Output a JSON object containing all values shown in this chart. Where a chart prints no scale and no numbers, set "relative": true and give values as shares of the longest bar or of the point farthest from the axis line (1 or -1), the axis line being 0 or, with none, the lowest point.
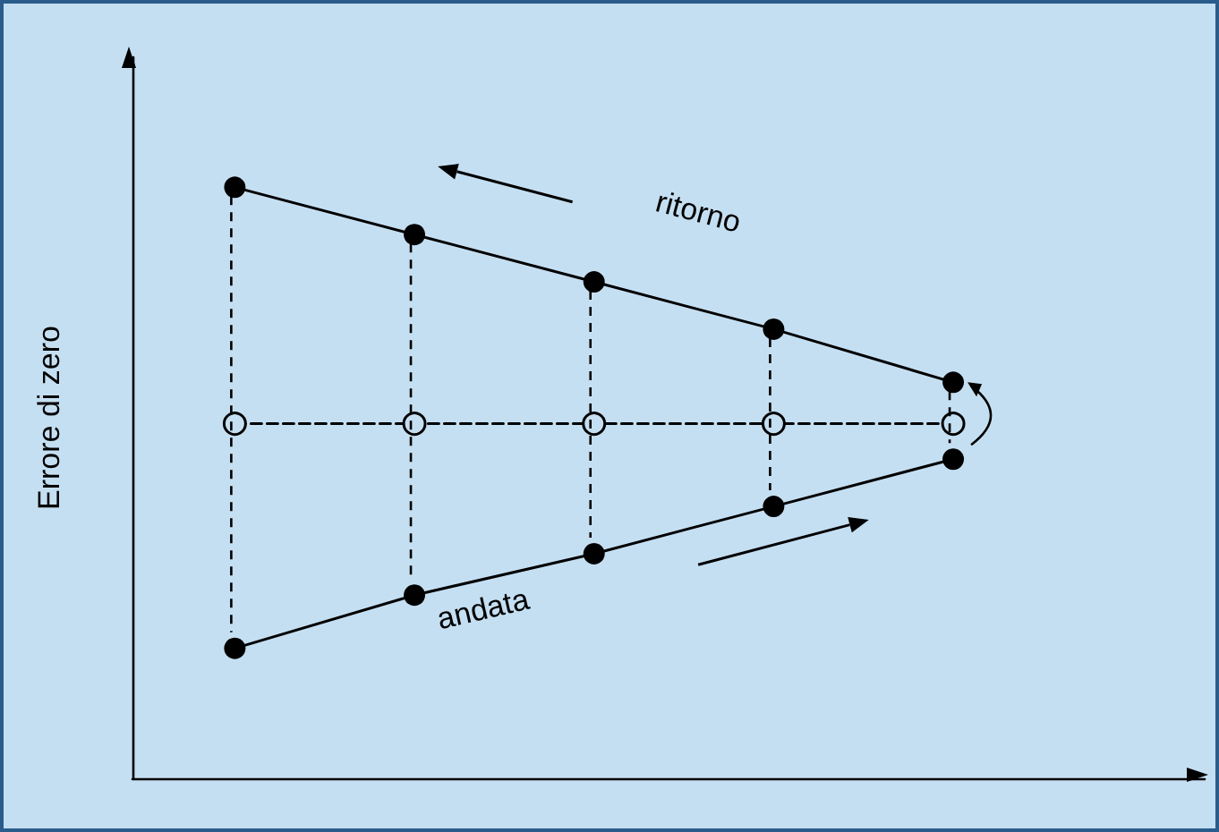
{
  "chart_data": {
    "type": "line",
    "relative": true,
    "ylabel": "Errore di zero",
    "categories": [
      null,
      null,
      null,
      null,
      null
    ],
    "series": [
      {
        "name": "ritorno",
        "color": "#000000",
        "values": [
          1,
          0.92,
          0.84,
          0.76,
          0.67
        ]
      },
      {
        "name": "andata",
        "color": "#000000",
        "values": [
          0.22,
          0.31,
          0.38,
          0.46,
          0.54
        ]
      },
      {
        "color": "#000000",
        "line_style": "dashed",
        "values": [
          0.6,
          0.6,
          0.6,
          0.6,
          0.6
        ]
      }
    ],
    "marker": "circle",
    "line_style": "solid",
    "grid": false,
    "legend": false
  }
}
